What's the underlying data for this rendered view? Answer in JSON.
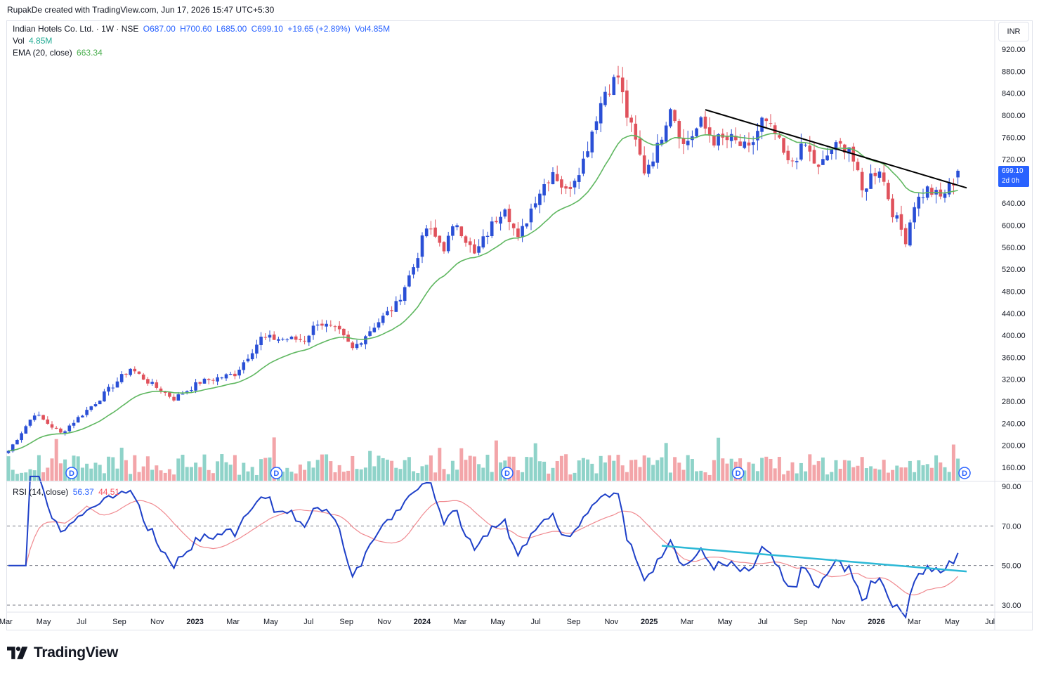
{
  "header": {
    "created_text": "RupakDe created with TradingView.com, Jun 17, 2026 15:47 UTC+5:30"
  },
  "legend": {
    "symbol": "Indian Hotels Co. Ltd. · 1W · NSE",
    "open": "O687.00",
    "high": "H700.60",
    "low": "L685.00",
    "close": "C699.10",
    "change": "+19.65 (+2.89%)",
    "vol_inline": "Vol4.85M",
    "vol_label": "Vol",
    "vol_value": "4.85M",
    "ema_label": "EMA (20, close)",
    "ema_value": "663.34",
    "rsi_label": "RSI (14, close)",
    "rsi_value": "56.37",
    "rsi_ma_value": "44.51"
  },
  "price_axis": {
    "currency": "INR",
    "last_price": "699.10",
    "countdown": "2d 0h",
    "ticks": [
      "920.00",
      "880.00",
      "840.00",
      "800.00",
      "760.00",
      "720.00",
      "680.00",
      "640.00",
      "600.00",
      "560.00",
      "520.00",
      "480.00",
      "440.00",
      "400.00",
      "360.00",
      "320.00",
      "280.00",
      "240.00",
      "200.00",
      "160.00"
    ]
  },
  "rsi_axis": {
    "ticks": [
      "90.00",
      "70.00",
      "50.00",
      "30.00"
    ]
  },
  "time_axis": {
    "labels": [
      "Mar",
      "May",
      "Jul",
      "Sep",
      "Nov",
      "2023",
      "Mar",
      "May",
      "Jul",
      "Sep",
      "Nov",
      "2024",
      "Mar",
      "May",
      "Jul",
      "Sep",
      "Nov",
      "2025",
      "Mar",
      "May",
      "Jul",
      "Sep",
      "Nov",
      "2026",
      "Mar",
      "May",
      "Jul"
    ]
  },
  "dividend_marker": "D",
  "footer": {
    "brand": "TradingView"
  },
  "colors": {
    "up": "#2a4fd6",
    "down": "#e0525c",
    "volume_up": "#8fd3c9",
    "volume_down": "#f3a5a9",
    "ema": "#5fb760",
    "rsi": "#1e40c8",
    "rsi_ma": "#f08a90",
    "trendline": "#000000",
    "rsi_trendline": "#2bb8d6",
    "dividend": "#2962ff"
  },
  "chart_data": {
    "type": "candlestick",
    "symbol": "Indian Hotels Co. Ltd.",
    "interval": "1W",
    "exchange": "NSE",
    "y_range": [
      150,
      940
    ],
    "rsi_range": [
      25,
      95
    ],
    "rsi_levels": [
      70,
      50,
      30
    ],
    "anchors": [
      {
        "week": 0,
        "price": 190
      },
      {
        "week": 6,
        "price": 258
      },
      {
        "week": 12,
        "price": 222
      },
      {
        "week": 20,
        "price": 278
      },
      {
        "week": 28,
        "price": 340
      },
      {
        "week": 33,
        "price": 310
      },
      {
        "week": 38,
        "price": 285
      },
      {
        "week": 44,
        "price": 315
      },
      {
        "week": 52,
        "price": 330
      },
      {
        "week": 58,
        "price": 395
      },
      {
        "week": 68,
        "price": 392
      },
      {
        "week": 71,
        "price": 425
      },
      {
        "week": 76,
        "price": 405
      },
      {
        "week": 79,
        "price": 375
      },
      {
        "week": 84,
        "price": 418
      },
      {
        "week": 89,
        "price": 455
      },
      {
        "week": 93,
        "price": 525
      },
      {
        "week": 96,
        "price": 595
      },
      {
        "week": 100,
        "price": 560
      },
      {
        "week": 103,
        "price": 605
      },
      {
        "week": 107,
        "price": 545
      },
      {
        "week": 111,
        "price": 600
      },
      {
        "week": 114,
        "price": 638
      },
      {
        "week": 117,
        "price": 572
      },
      {
        "week": 121,
        "price": 650
      },
      {
        "week": 125,
        "price": 700
      },
      {
        "week": 128,
        "price": 660
      },
      {
        "week": 132,
        "price": 718
      },
      {
        "week": 135,
        "price": 800
      },
      {
        "week": 137,
        "price": 845
      },
      {
        "week": 140,
        "price": 870
      },
      {
        "week": 142,
        "price": 800
      },
      {
        "week": 146,
        "price": 700
      },
      {
        "week": 149,
        "price": 740
      },
      {
        "week": 152,
        "price": 820
      },
      {
        "week": 155,
        "price": 745
      },
      {
        "week": 159,
        "price": 785
      },
      {
        "week": 162,
        "price": 755
      },
      {
        "week": 166,
        "price": 755
      },
      {
        "week": 170,
        "price": 735
      },
      {
        "week": 173,
        "price": 790
      },
      {
        "week": 176,
        "price": 765
      },
      {
        "week": 179,
        "price": 710
      },
      {
        "week": 183,
        "price": 745
      },
      {
        "week": 186,
        "price": 700
      },
      {
        "week": 189,
        "price": 740
      },
      {
        "week": 193,
        "price": 745
      },
      {
        "week": 196,
        "price": 660
      },
      {
        "week": 198,
        "price": 690
      },
      {
        "week": 200,
        "price": 705
      },
      {
        "week": 203,
        "price": 625
      },
      {
        "week": 206,
        "price": 575
      },
      {
        "week": 208,
        "price": 640
      },
      {
        "week": 211,
        "price": 665
      },
      {
        "week": 214,
        "price": 650
      },
      {
        "week": 217,
        "price": 680
      },
      {
        "week": 218,
        "price": 699.1
      }
    ],
    "ema": {
      "period": 20,
      "last": 663.34
    },
    "volume": {
      "last": "4.85M"
    },
    "rsi": {
      "period": 14,
      "last": 56.37,
      "ma_last": 44.51
    },
    "price_trendline": [
      {
        "week": 160,
        "price": 810
      },
      {
        "week": 220,
        "price": 668
      }
    ],
    "rsi_trendline": [
      {
        "week": 150,
        "rsi": 60
      },
      {
        "week": 220,
        "rsi": 47
      }
    ],
    "dividend_weeks": [
      15,
      62,
      115,
      168,
      220
    ]
  }
}
